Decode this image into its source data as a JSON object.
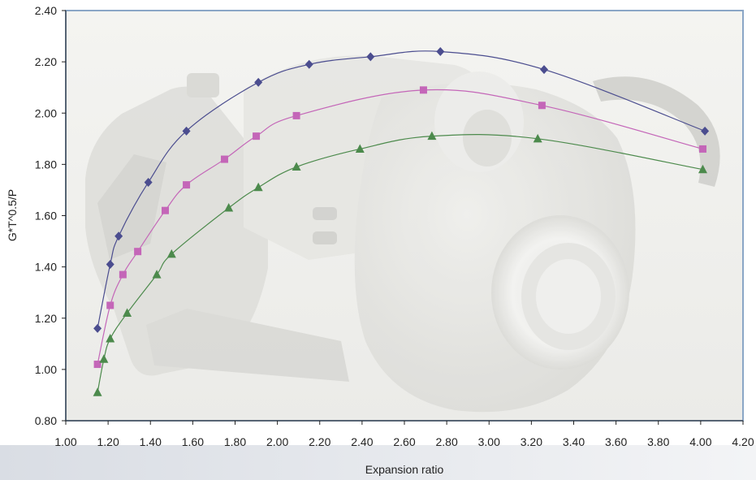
{
  "chart_data": {
    "type": "line",
    "title": "",
    "xlabel": "Expansion ratio",
    "ylabel": "G*T^0.5/P",
    "xlim": [
      1.0,
      4.2
    ],
    "ylim": [
      0.8,
      2.4
    ],
    "x_ticks": [
      "1.00",
      "1.20",
      "1.40",
      "1.60",
      "1.80",
      "2.00",
      "2.20",
      "2.40",
      "2.60",
      "2.80",
      "3.00",
      "3.20",
      "3.40",
      "3.60",
      "3.80",
      "4.00",
      "4.20"
    ],
    "y_ticks": [
      "0.80",
      "1.00",
      "1.20",
      "1.40",
      "1.60",
      "1.80",
      "2.00",
      "2.20",
      "2.40"
    ],
    "grid": false,
    "legend": "none",
    "background_image": "turbocharger-photo",
    "series": [
      {
        "color": "#4b4d8f",
        "marker": "diamond",
        "points": [
          [
            1.15,
            1.16
          ],
          [
            1.21,
            1.41
          ],
          [
            1.25,
            1.52
          ],
          [
            1.39,
            1.73
          ],
          [
            1.57,
            1.93
          ],
          [
            1.91,
            2.12
          ],
          [
            2.15,
            2.19
          ],
          [
            2.44,
            2.22
          ],
          [
            2.77,
            2.24
          ],
          [
            3.26,
            2.17
          ],
          [
            4.02,
            1.93
          ]
        ]
      },
      {
        "color": "#c466b8",
        "marker": "square",
        "points": [
          [
            1.15,
            1.02
          ],
          [
            1.21,
            1.25
          ],
          [
            1.27,
            1.37
          ],
          [
            1.34,
            1.46
          ],
          [
            1.47,
            1.62
          ],
          [
            1.57,
            1.72
          ],
          [
            1.75,
            1.82
          ],
          [
            1.9,
            1.91
          ],
          [
            2.09,
            1.99
          ],
          [
            2.69,
            2.09
          ],
          [
            3.25,
            2.03
          ],
          [
            4.01,
            1.86
          ]
        ]
      },
      {
        "color": "#4c8a4c",
        "marker": "triangle",
        "points": [
          [
            1.15,
            0.91
          ],
          [
            1.18,
            1.04
          ],
          [
            1.21,
            1.12
          ],
          [
            1.29,
            1.22
          ],
          [
            1.43,
            1.37
          ],
          [
            1.5,
            1.45
          ],
          [
            1.77,
            1.63
          ],
          [
            1.91,
            1.71
          ],
          [
            2.09,
            1.79
          ],
          [
            2.39,
            1.86
          ],
          [
            2.73,
            1.91
          ],
          [
            3.23,
            1.9
          ],
          [
            4.01,
            1.78
          ]
        ]
      }
    ]
  }
}
